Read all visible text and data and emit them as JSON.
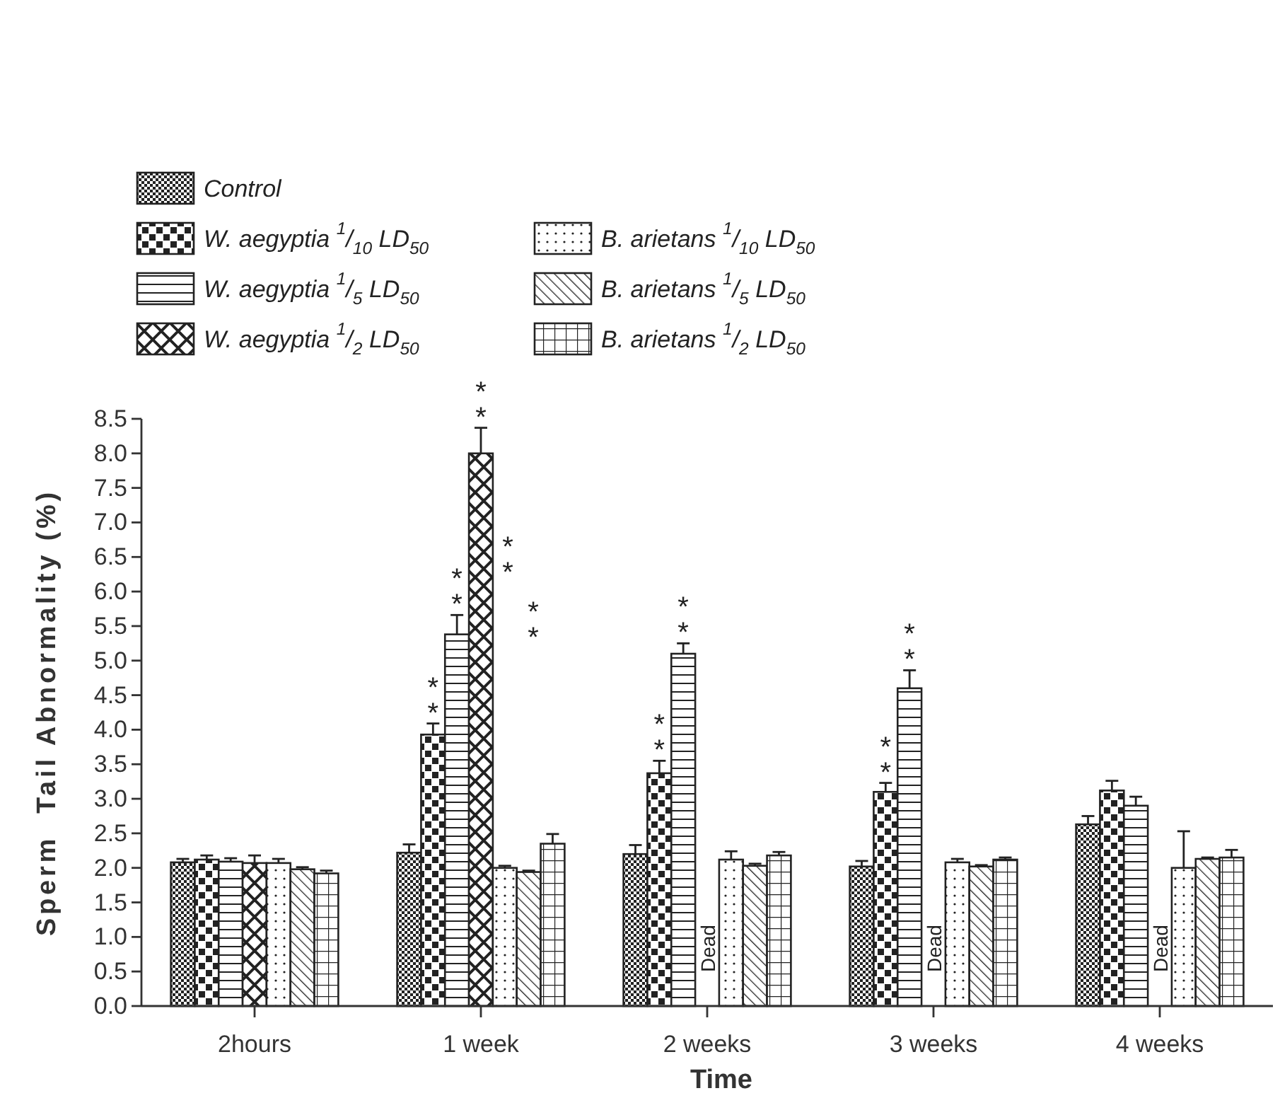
{
  "chart_data": {
    "type": "bar",
    "xlabel": "Time",
    "ylabel": "Sperm  Tail Abnormality (%)",
    "categories": [
      "2hours",
      "1 week",
      "2 weeks",
      "3 weeks",
      "4 weeks"
    ],
    "series": [
      {
        "name": "Control",
        "color": "#222222",
        "values": [
          2.08,
          2.22,
          2.2,
          2.02,
          2.63
        ],
        "errors": [
          0.05,
          0.12,
          0.13,
          0.08,
          0.12
        ]
      },
      {
        "name": "W. aegyptia $^{1}$/$_{10}$ LD$_{50}$",
        "color": "#222222",
        "values": [
          2.12,
          3.93,
          3.37,
          3.1,
          3.12
        ],
        "errors": [
          0.06,
          0.16,
          0.18,
          0.13,
          0.14
        ],
        "value_labels": [
          null,
          "**",
          "**",
          "**",
          null
        ]
      },
      {
        "name": "W. aegyptia $^{1}$/$_{5}$ LD$_{50}$",
        "color": "#222222",
        "values": [
          2.09,
          5.38,
          5.1,
          4.6,
          2.9
        ],
        "errors": [
          0.05,
          0.28,
          0.15,
          0.26,
          0.13
        ],
        "value_labels": [
          null,
          "**",
          "**",
          "**",
          null
        ]
      },
      {
        "name": "W. aegyptia $^{1}$/$_{2}$ LD$_{50}$",
        "color": "#222222",
        "values": [
          2.07,
          8.0,
          null,
          null,
          null
        ],
        "errors": [
          0.11,
          0.37,
          null,
          null,
          null
        ],
        "value_labels": [
          null,
          "**",
          "Dead",
          "Dead",
          "Dead"
        ]
      },
      {
        "name": "B. arietans $^{1}$/$_{10}$ LD$_{50}$",
        "color": "#222222",
        "values": [
          2.07,
          2.0,
          2.12,
          2.08,
          2.0
        ],
        "errors": [
          0.06,
          0.03,
          0.12,
          0.05,
          0.53
        ]
      },
      {
        "name": "B. arietans $^{1}$/$_{5}$ LD$_{50}$",
        "color": "#222222",
        "values": [
          1.98,
          1.94,
          2.03,
          2.02,
          2.13
        ],
        "errors": [
          0.03,
          0.02,
          0.03,
          0.02,
          0.02
        ]
      },
      {
        "name": "B. arietans $^{1}$/$_{2}$ LD$_{50}$",
        "color": "#222222",
        "values": [
          1.92,
          2.35,
          2.18,
          2.12,
          2.15
        ],
        "errors": [
          0.04,
          0.14,
          0.05,
          0.03,
          0.11
        ]
      }
    ],
    "ylim": [
      0,
      8.5
    ],
    "yticks": [
      {
        "value": 0,
        "label": "0.0"
      },
      0.5,
      {
        "value": 1,
        "label": "1.0"
      },
      1.5,
      {
        "value": 2,
        "label": "2.0"
      },
      2.5,
      {
        "value": 3,
        "label": "3.0"
      },
      3.5,
      {
        "value": 4,
        "label": "4.0"
      },
      4.5,
      {
        "value": 5,
        "label": "5.0"
      },
      5.5,
      {
        "value": 6,
        "label": "6.0"
      },
      6.5,
      {
        "value": 7,
        "label": "7.0"
      },
      7.5,
      {
        "value": 8,
        "label": "8.0"
      },
      8.5
    ],
    "legend": "top left",
    "annotations": [
      "**",
      "**"
    ]
  }
}
